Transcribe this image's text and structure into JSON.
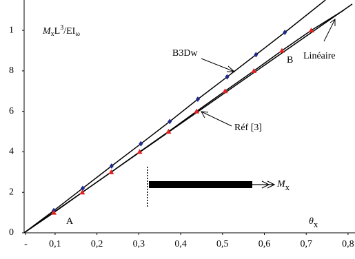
{
  "chart_data": {
    "type": "line",
    "ylabel": [
      "M",
      "x",
      "L",
      "3",
      "/EI",
      "ω"
    ],
    "xlabel": [
      "θ",
      "x"
    ],
    "moment_label": [
      "M",
      "x"
    ],
    "annotations": [
      "B3Dw",
      "Réf [3]",
      "Linéaire",
      "A",
      "B"
    ],
    "xlim": [
      0.026,
      0.81
    ],
    "ylim": [
      0,
      11.5
    ],
    "xticks": [
      {
        "value": 0.03,
        "label": "-"
      },
      {
        "value": 0.1,
        "label": "0,1"
      },
      {
        "value": 0.2,
        "label": "0,2"
      },
      {
        "value": 0.3,
        "label": "0,3"
      },
      {
        "value": 0.4,
        "label": "0,4"
      },
      {
        "value": 0.5,
        "label": "0,5"
      },
      {
        "value": 0.6,
        "label": "0,6"
      },
      {
        "value": 0.7,
        "label": "0,7"
      },
      {
        "value": 0.8,
        "label": "0,8"
      }
    ],
    "yticks": [
      0,
      2,
      4,
      6,
      8,
      {
        "value": 10,
        "label": "1"
      }
    ],
    "series": [
      {
        "color": "#000000",
        "x": [
          0.026,
          0.097,
          0.166,
          0.235,
          0.305,
          0.374,
          0.441,
          0.511,
          0.58,
          0.649,
          0.746
        ],
        "values": [
          0,
          1.1,
          2.2,
          3.3,
          4.4,
          5.5,
          6.6,
          7.7,
          8.8,
          9.9,
          11.5
        ]
      },
      {
        "color": "#000000",
        "x": [
          0.026,
          0.097,
          0.165,
          0.234,
          0.302,
          0.371,
          0.438,
          0.506,
          0.575,
          0.642,
          0.712,
          0.79
        ],
        "values": [
          0,
          1,
          2,
          3,
          4,
          5,
          6,
          7,
          8,
          9,
          10,
          11.0
        ]
      },
      {
        "color": "#000000",
        "x": [
          0.026,
          0.81
        ],
        "values": [
          0,
          11.3
        ]
      },
      {
        "marker": "diamond",
        "color": "#1c2a8c",
        "x": [
          0.097,
          0.166,
          0.235,
          0.305,
          0.374,
          0.441,
          0.511,
          0.58,
          0.649
        ],
        "values": [
          1.1,
          2.2,
          3.3,
          4.4,
          5.5,
          6.6,
          7.7,
          8.8,
          9.9
        ]
      },
      {
        "marker": "triangle",
        "color": "#e02020",
        "x": [
          0.097,
          0.165,
          0.234,
          0.302,
          0.371,
          0.438,
          0.506,
          0.575,
          0.642,
          0.712
        ],
        "values": [
          1,
          2,
          3,
          4,
          5,
          6,
          7,
          8,
          9,
          10
        ]
      }
    ]
  }
}
